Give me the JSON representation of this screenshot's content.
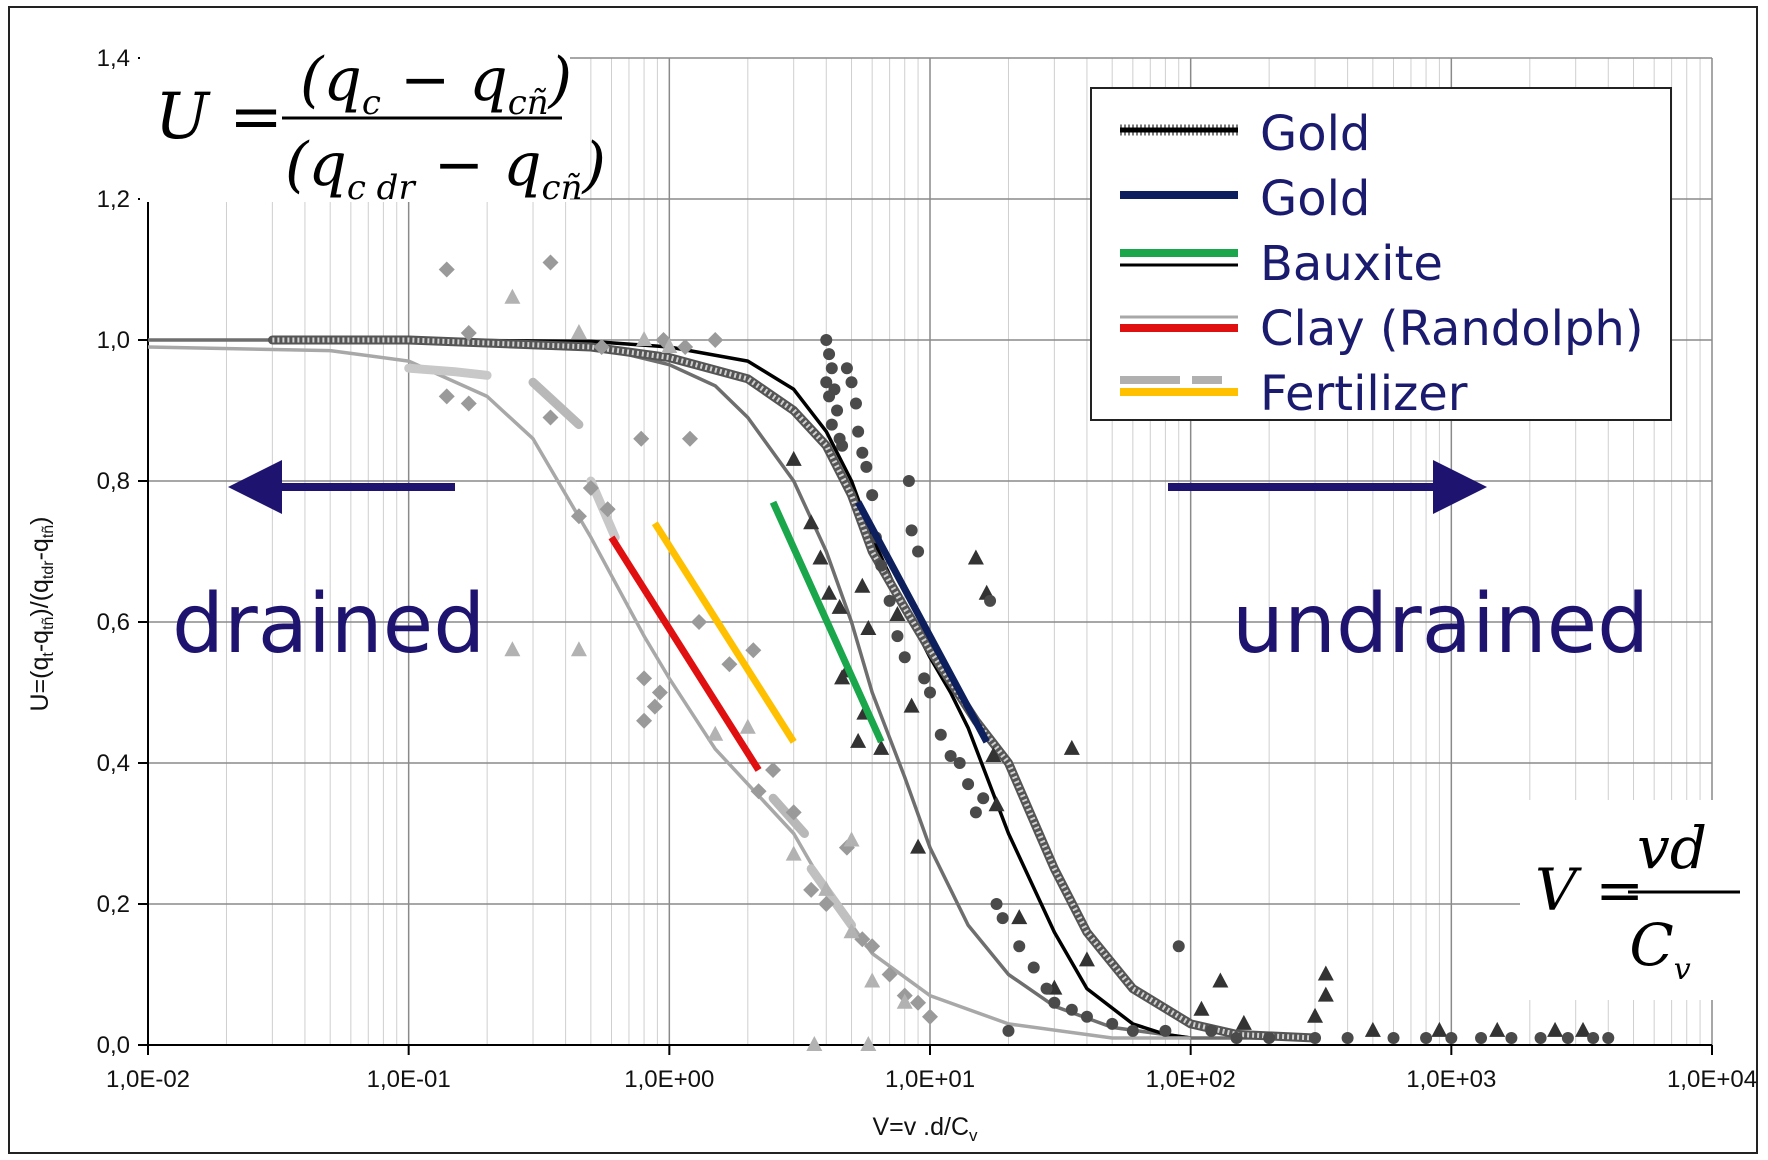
{
  "chart_data": {
    "type": "scatter",
    "title": "",
    "xlabel": "V=v .d/C",
    "xlabel_sub": "v",
    "ylabel": "U=(q",
    "ylabel_parts": [
      "U=(q",
      "t",
      "-q",
      "tñ",
      ")/(q",
      "tdr",
      "-q",
      "tñ",
      ")"
    ],
    "x_scale": "log",
    "xlim": [
      0.01,
      10000
    ],
    "ylim": [
      0,
      1.4
    ],
    "x_ticks": [
      0.01,
      0.1,
      1,
      10,
      100,
      1000,
      10000
    ],
    "x_tick_labels": [
      "1,0E-02",
      "1,0E-01",
      "1,0E+00",
      "1,0E+01",
      "1,0E+02",
      "1,0E+03",
      "1,0E+04"
    ],
    "y_ticks": [
      0,
      0.2,
      0.4,
      0.6,
      0.8,
      1.0,
      1.2,
      1.4
    ],
    "y_tick_labels": [
      "0,0",
      "0,2",
      "0,4",
      "0,6",
      "0,8",
      "1,0",
      "1,2",
      "1,4"
    ],
    "grid": true,
    "legend_position": "top-right",
    "legend": [
      {
        "label": "Gold",
        "color": "#000000",
        "swatch": "dotted-black"
      },
      {
        "label": "Gold",
        "color": "#0d1f5c",
        "swatch": "navy"
      },
      {
        "label": "Bauxite",
        "color": "#1aa64a",
        "swatch": "green-over-black"
      },
      {
        "label": "Clay (Randolph)",
        "color": "#e01010",
        "swatch": "red-over-grey"
      },
      {
        "label": "Fertilizer",
        "color": "#ffc000",
        "swatch": "yellow-over-dashed-grey"
      }
    ],
    "curves": [
      {
        "color": "#6e6e6e",
        "points": [
          [
            0.01,
            1.0
          ],
          [
            0.1,
            1.0
          ],
          [
            0.3,
            0.995
          ],
          [
            0.6,
            0.985
          ],
          [
            1,
            0.965
          ],
          [
            1.5,
            0.935
          ],
          [
            2,
            0.89
          ],
          [
            3,
            0.8
          ],
          [
            4,
            0.7
          ],
          [
            5,
            0.6
          ],
          [
            6,
            0.5
          ],
          [
            8,
            0.38
          ],
          [
            10,
            0.28
          ],
          [
            14,
            0.17
          ],
          [
            20,
            0.1
          ],
          [
            30,
            0.055
          ],
          [
            50,
            0.025
          ],
          [
            100,
            0.01
          ],
          [
            200,
            0.01
          ]
        ]
      },
      {
        "color": "#000000",
        "points": [
          [
            0.03,
            1.0
          ],
          [
            0.1,
            1.0
          ],
          [
            0.5,
            0.998
          ],
          [
            1,
            0.99
          ],
          [
            2,
            0.97
          ],
          [
            3,
            0.93
          ],
          [
            4,
            0.87
          ],
          [
            5,
            0.8
          ],
          [
            6,
            0.72
          ],
          [
            8,
            0.62
          ],
          [
            10,
            0.55
          ],
          [
            12,
            0.5
          ],
          [
            14,
            0.45
          ],
          [
            20,
            0.3
          ],
          [
            30,
            0.16
          ],
          [
            40,
            0.08
          ],
          [
            60,
            0.03
          ],
          [
            80,
            0.015
          ],
          [
            100,
            0.01
          ]
        ]
      },
      {
        "color": "#8a8a8a",
        "dotted": true,
        "points": [
          [
            0.03,
            1.0
          ],
          [
            0.1,
            1.0
          ],
          [
            0.5,
            0.99
          ],
          [
            1,
            0.975
          ],
          [
            2,
            0.945
          ],
          [
            3,
            0.9
          ],
          [
            4,
            0.85
          ],
          [
            5,
            0.78
          ],
          [
            6,
            0.7
          ],
          [
            8,
            0.62
          ],
          [
            10,
            0.56
          ],
          [
            15,
            0.46
          ],
          [
            20,
            0.4
          ],
          [
            30,
            0.25
          ],
          [
            40,
            0.16
          ],
          [
            60,
            0.08
          ],
          [
            100,
            0.03
          ],
          [
            150,
            0.015
          ],
          [
            300,
            0.01
          ]
        ]
      },
      {
        "color": "#a8a8a8",
        "points": [
          [
            0.01,
            0.99
          ],
          [
            0.05,
            0.985
          ],
          [
            0.1,
            0.97
          ],
          [
            0.2,
            0.92
          ],
          [
            0.3,
            0.86
          ],
          [
            0.5,
            0.72
          ],
          [
            0.8,
            0.58
          ],
          [
            1,
            0.52
          ],
          [
            1.5,
            0.42
          ],
          [
            2,
            0.37
          ],
          [
            3,
            0.3
          ],
          [
            4,
            0.22
          ],
          [
            6,
            0.13
          ],
          [
            10,
            0.07
          ],
          [
            20,
            0.03
          ],
          [
            50,
            0.01
          ],
          [
            100,
            0.01
          ]
        ]
      }
    ],
    "dashed_segments": [
      {
        "color": "#c8c8c8",
        "points": [
          [
            0.1,
            0.96
          ],
          [
            0.15,
            0.955
          ],
          [
            0.2,
            0.95
          ]
        ]
      },
      {
        "color": "#b8b8b8",
        "points": [
          [
            0.3,
            0.94
          ],
          [
            0.45,
            0.88
          ]
        ]
      },
      {
        "color": "#c8c8c8",
        "points": [
          [
            0.5,
            0.8
          ],
          [
            0.62,
            0.72
          ]
        ]
      },
      {
        "color": "#b8b8b8",
        "points": [
          [
            2.5,
            0.35
          ],
          [
            3.3,
            0.3
          ]
        ]
      },
      {
        "color": "#c0c0c0",
        "points": [
          [
            3.5,
            0.25
          ],
          [
            5,
            0.17
          ]
        ]
      }
    ],
    "highlight_lines": [
      {
        "name": "Clay (Randolph)",
        "color": "#e01010",
        "points": [
          [
            0.6,
            0.72
          ],
          [
            2.2,
            0.39
          ]
        ]
      },
      {
        "name": "Fertilizer",
        "color": "#ffc000",
        "points": [
          [
            0.88,
            0.74
          ],
          [
            3.0,
            0.43
          ]
        ]
      },
      {
        "name": "Bauxite",
        "color": "#1aa64a",
        "points": [
          [
            2.5,
            0.77
          ],
          [
            6.5,
            0.43
          ]
        ]
      },
      {
        "name": "Gold",
        "color": "#0d1f5c",
        "points": [
          [
            5.3,
            0.77
          ],
          [
            16.5,
            0.43
          ]
        ]
      }
    ],
    "scatter_series": [
      {
        "marker": "diamond",
        "color": "#9a9a9a",
        "points": [
          [
            0.14,
            1.1
          ],
          [
            0.35,
            1.11
          ],
          [
            0.17,
            1.01
          ],
          [
            0.55,
            0.99
          ],
          [
            0.95,
            1.0
          ],
          [
            1.15,
            0.99
          ],
          [
            1.5,
            1.0
          ],
          [
            0.14,
            0.92
          ],
          [
            0.17,
            0.91
          ],
          [
            0.35,
            0.89
          ],
          [
            0.45,
            0.75
          ],
          [
            0.5,
            0.79
          ],
          [
            0.58,
            0.76
          ],
          [
            0.78,
            0.86
          ],
          [
            1.2,
            0.86
          ],
          [
            1.3,
            0.6
          ],
          [
            0.8,
            0.52
          ],
          [
            0.8,
            0.46
          ],
          [
            0.88,
            0.48
          ],
          [
            0.92,
            0.5
          ],
          [
            1.7,
            0.54
          ],
          [
            2.2,
            0.36
          ],
          [
            2.5,
            0.39
          ],
          [
            3.5,
            0.22
          ],
          [
            4,
            0.2
          ],
          [
            4.8,
            0.28
          ],
          [
            5.5,
            0.15
          ],
          [
            6,
            0.14
          ],
          [
            7,
            0.1
          ],
          [
            8,
            0.07
          ],
          [
            9,
            0.06
          ],
          [
            10,
            0.04
          ],
          [
            2.1,
            0.56
          ],
          [
            3,
            0.33
          ]
        ]
      },
      {
        "marker": "triangle",
        "color": "#b2b2b2",
        "points": [
          [
            0.25,
            1.06
          ],
          [
            0.25,
            0.56
          ],
          [
            0.45,
            0.56
          ],
          [
            0.45,
            1.01
          ],
          [
            0.8,
            1.0
          ],
          [
            1.0,
            0.99
          ],
          [
            1.5,
            0.44
          ],
          [
            2.0,
            0.45
          ],
          [
            3.0,
            0.27
          ],
          [
            4.0,
            0.22
          ],
          [
            5.0,
            0.29
          ],
          [
            5.0,
            0.16
          ],
          [
            6.0,
            0.09
          ],
          [
            3.6,
            0.0
          ],
          [
            5.8,
            0.0
          ],
          [
            8.0,
            0.06
          ]
        ]
      },
      {
        "marker": "triangle",
        "color": "#333333",
        "points": [
          [
            3,
            0.83
          ],
          [
            3.5,
            0.74
          ],
          [
            3.8,
            0.69
          ],
          [
            4.1,
            0.64
          ],
          [
            4.5,
            0.62
          ],
          [
            4.6,
            0.52
          ],
          [
            4.8,
            0.53
          ],
          [
            5.5,
            0.65
          ],
          [
            5.8,
            0.59
          ],
          [
            5.3,
            0.43
          ],
          [
            5.6,
            0.47
          ],
          [
            6.5,
            0.42
          ],
          [
            7.5,
            0.61
          ],
          [
            8.5,
            0.48
          ],
          [
            9,
            0.28
          ],
          [
            15,
            0.69
          ],
          [
            16.5,
            0.64
          ],
          [
            17.5,
            0.41
          ],
          [
            35,
            0.42
          ],
          [
            18,
            0.34
          ],
          [
            22,
            0.18
          ],
          [
            30,
            0.08
          ],
          [
            40,
            0.12
          ],
          [
            110,
            0.05
          ],
          [
            130,
            0.09
          ],
          [
            160,
            0.03
          ],
          [
            300,
            0.04
          ],
          [
            330,
            0.1
          ],
          [
            330,
            0.07
          ],
          [
            500,
            0.02
          ],
          [
            900,
            0.02
          ],
          [
            1500,
            0.02
          ],
          [
            2500,
            0.02
          ],
          [
            3200,
            0.02
          ]
        ]
      },
      {
        "marker": "circle",
        "color": "#4a4a4a",
        "points": [
          [
            4.0,
            1.0
          ],
          [
            4.1,
            0.98
          ],
          [
            4.2,
            0.96
          ],
          [
            4.0,
            0.94
          ],
          [
            4.3,
            0.93
          ],
          [
            4.1,
            0.92
          ],
          [
            4.4,
            0.9
          ],
          [
            4.2,
            0.88
          ],
          [
            4.5,
            0.86
          ],
          [
            4.6,
            0.85
          ],
          [
            4.8,
            0.96
          ],
          [
            5.0,
            0.94
          ],
          [
            5.2,
            0.91
          ],
          [
            5.3,
            0.87
          ],
          [
            5.5,
            0.84
          ],
          [
            5.7,
            0.82
          ],
          [
            6.0,
            0.78
          ],
          [
            6.2,
            0.72
          ],
          [
            6.5,
            0.68
          ],
          [
            7.0,
            0.63
          ],
          [
            7.5,
            0.58
          ],
          [
            8.0,
            0.55
          ],
          [
            8.3,
            0.8
          ],
          [
            8.5,
            0.73
          ],
          [
            9.0,
            0.7
          ],
          [
            9.5,
            0.52
          ],
          [
            10,
            0.5
          ],
          [
            11,
            0.44
          ],
          [
            12,
            0.41
          ],
          [
            13,
            0.4
          ],
          [
            14,
            0.37
          ],
          [
            15,
            0.33
          ],
          [
            16,
            0.35
          ],
          [
            17,
            0.63
          ],
          [
            18,
            0.2
          ],
          [
            19,
            0.18
          ],
          [
            20,
            0.02
          ],
          [
            22,
            0.14
          ],
          [
            25,
            0.11
          ],
          [
            28,
            0.08
          ],
          [
            30,
            0.06
          ],
          [
            35,
            0.05
          ],
          [
            40,
            0.04
          ],
          [
            50,
            0.03
          ],
          [
            60,
            0.02
          ],
          [
            80,
            0.02
          ],
          [
            90,
            0.14
          ],
          [
            120,
            0.02
          ],
          [
            150,
            0.01
          ],
          [
            200,
            0.01
          ],
          [
            300,
            0.01
          ],
          [
            400,
            0.01
          ],
          [
            600,
            0.01
          ],
          [
            800,
            0.01
          ],
          [
            1000,
            0.01
          ],
          [
            1300,
            0.01
          ],
          [
            1700,
            0.01
          ],
          [
            2200,
            0.01
          ],
          [
            2800,
            0.01
          ],
          [
            3500,
            0.01
          ],
          [
            4000,
            0.01
          ]
        ]
      }
    ],
    "annotations": [
      {
        "text": "drained",
        "color": "#1e1470"
      },
      {
        "text": "undrained",
        "color": "#1e1470"
      }
    ],
    "arrows": [
      {
        "direction": "left",
        "color": "#1e1470"
      },
      {
        "direction": "right",
        "color": "#1e1470"
      }
    ]
  },
  "equations": {
    "u_lhs": "U =",
    "u_numerator": "(q",
    "u_num_sub1": "c",
    "u_num_mid": " − q",
    "u_num_sub2": "cñ",
    "u_num_close": ")",
    "u_denominator": "(q",
    "u_den_sub1": "c dr",
    "u_den_mid": " − q",
    "u_den_sub2": "cñ",
    "u_den_close": ")",
    "v_lhs": "V =",
    "v_numerator": "vd",
    "v_denominator": "C",
    "v_den_sub": "v"
  }
}
